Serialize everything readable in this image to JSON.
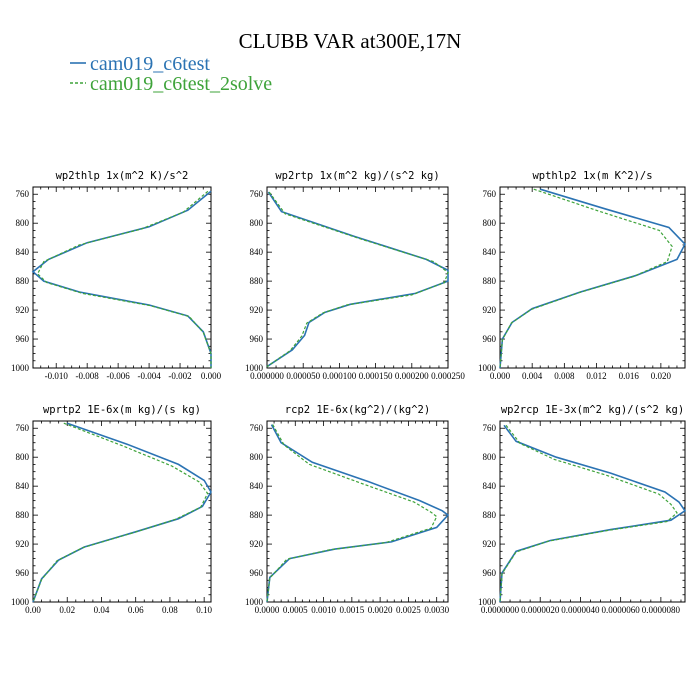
{
  "colors": {
    "series_a": "#2b73b3",
    "series_b": "#3ea33a",
    "axis": "#000000",
    "background": "#ffffff"
  },
  "chart_data": {
    "title": "CLUBB VAR at300E,17N",
    "legend": [
      {
        "name": "cam019_c6test",
        "color": "#2b73b3",
        "style": "solid"
      },
      {
        "name": "cam019_c6test_2solve",
        "color": "#3ea33a",
        "style": "dashed"
      }
    ],
    "legend_placement": "top-left",
    "grid": false,
    "y_axis": {
      "range": [
        1000,
        750
      ],
      "inverted": true,
      "ticks": [
        "760",
        "800",
        "840",
        "880",
        "920",
        "960",
        "1000"
      ],
      "tick_values": [
        760,
        800,
        840,
        880,
        920,
        960,
        1000
      ]
    },
    "panels": [
      {
        "type": "line",
        "title": "wp2thlp  1x(m^2 K)/s^2",
        "xlim": [
          -0.0115,
          0.0
        ],
        "xticks": [
          "-0.010",
          "-0.008",
          "-0.006",
          "-0.004",
          "-0.002",
          "0.000"
        ],
        "xtick_values": [
          -0.01,
          -0.008,
          -0.006,
          -0.004,
          -0.002,
          0.0
        ],
        "series": [
          {
            "x": [
              0.0,
              -0.0015,
              -0.004,
              -0.008,
              -0.0105,
              -0.0115,
              -0.0108,
              -0.0085,
              -0.004,
              -0.0015,
              -0.0005,
              0.0,
              0.0
            ],
            "y": [
              756,
              782,
              805,
              827,
              850,
              867,
              880,
              895,
              913,
              928,
              950,
              980,
              1000
            ]
          },
          {
            "x": [
              -0.0002,
              -0.0018,
              -0.0045,
              -0.0085,
              -0.0108,
              -0.0112,
              -0.0106,
              -0.0083,
              -0.0039,
              -0.0014,
              -0.0005,
              0.0,
              0.0
            ],
            "y": [
              756,
              785,
              808,
              830,
              853,
              870,
              882,
              897,
              914,
              929,
              951,
              980,
              1000
            ]
          }
        ]
      },
      {
        "type": "line",
        "title": "wp2rtp  1x(m^2 kg)/(s^2 kg)",
        "xlim": [
          0.0,
          0.00025
        ],
        "xticks": [
          "0.000000",
          "0.000050",
          "0.000100",
          "0.000150",
          "0.000200",
          "0.000250"
        ],
        "xtick_values": [
          0.0,
          5e-05,
          0.0001,
          0.00015,
          0.0002,
          0.00025
        ],
        "series": [
          {
            "x": [
              2e-06,
              2e-05,
              0.00012,
              0.00022,
              0.00025,
              0.00025,
              0.000205,
              0.000115,
              8e-05,
              5.8e-05,
              5.2e-05,
              3.5e-05,
              0.0
            ],
            "y": [
              757,
              784,
              818,
              850,
              865,
              880,
              897,
              912,
              923,
              937,
              955,
              975,
              998
            ]
          },
          {
            "x": [
              3e-06,
              2.5e-05,
              0.00013,
              0.00023,
              0.00025,
              0.000245,
              0.0002,
              0.00011,
              7.7e-05,
              5.5e-05,
              4.8e-05,
              3.2e-05,
              0.0
            ],
            "y": [
              757,
              787,
              822,
              853,
              868,
              882,
              899,
              913,
              924,
              938,
              956,
              976,
              998
            ]
          }
        ]
      },
      {
        "type": "line",
        "title": "wpthlp2  1x(m K^2)/s",
        "xlim": [
          0.0,
          0.023
        ],
        "xticks": [
          "0.000",
          "0.004",
          "0.008",
          "0.012",
          "0.016",
          "0.020"
        ],
        "xtick_values": [
          0.0,
          0.004,
          0.008,
          0.012,
          0.016,
          0.02
        ],
        "series": [
          {
            "x": [
              0.005,
              0.013,
              0.021,
              0.023,
              0.022,
              0.017,
              0.01,
              0.004,
              0.0015,
              0.0003,
              0.0
            ],
            "y": [
              753,
              780,
              806,
              829,
              850,
              872,
              895,
              918,
              937,
              960,
              1000
            ]
          },
          {
            "x": [
              0.0042,
              0.0122,
              0.0198,
              0.0214,
              0.0208,
              0.0165,
              0.0098,
              0.0039,
              0.0014,
              0.0003,
              0.0
            ],
            "y": [
              753,
              783,
              810,
              832,
              853,
              874,
              896,
              919,
              938,
              961,
              1000
            ]
          }
        ]
      },
      {
        "type": "line",
        "title": "wprtp2  1E-6x(m kg)/(s kg)",
        "xlim": [
          0.0,
          0.104
        ],
        "xticks": [
          "0.00",
          "0.02",
          "0.04",
          "0.06",
          "0.08",
          "0.10"
        ],
        "xtick_values": [
          0.0,
          0.02,
          0.04,
          0.06,
          0.08,
          0.1
        ],
        "series": [
          {
            "x": [
              0.02,
              0.055,
              0.085,
              0.1,
              0.104,
              0.099,
              0.085,
              0.06,
              0.03,
              0.015,
              0.005,
              0.0
            ],
            "y": [
              753,
              782,
              810,
              832,
              848,
              868,
              885,
              903,
              924,
              942,
              968,
              1000
            ]
          },
          {
            "x": [
              0.018,
              0.052,
              0.081,
              0.097,
              0.102,
              0.098,
              0.083,
              0.059,
              0.029,
              0.014,
              0.005,
              0.0
            ],
            "y": [
              753,
              784,
              812,
              834,
              850,
              869,
              886,
              904,
              925,
              943,
              969,
              1000
            ]
          }
        ]
      },
      {
        "type": "line",
        "title": "rcp2  1E-6x(kg^2)/(kg^2)",
        "xlim": [
          0.0,
          0.0032
        ],
        "xticks": [
          "0.0000",
          "0.0005",
          "0.0010",
          "0.0015",
          "0.0020",
          "0.0025",
          "0.0030"
        ],
        "xtick_values": [
          0.0,
          0.0005,
          0.001,
          0.0015,
          0.002,
          0.0025,
          0.003
        ],
        "series": [
          {
            "x": [
              8e-05,
              0.00025,
              0.0008,
              0.0018,
              0.0027,
              0.0031,
              0.0032,
              0.003,
              0.0022,
              0.0012,
              0.0004,
              5e-05,
              0.0
            ],
            "y": [
              755,
              780,
              807,
              834,
              860,
              874,
              880,
              897,
              917,
              927,
              940,
              966,
              1000
            ]
          },
          {
            "x": [
              0.0001,
              0.0003,
              0.00075,
              0.0017,
              0.0026,
              0.0029,
              0.003,
              0.0029,
              0.0021,
              0.0011,
              0.00035,
              5e-05,
              0.0
            ],
            "y": [
              755,
              783,
              810,
              837,
              862,
              876,
              882,
              898,
              918,
              928,
              941,
              967,
              1000
            ]
          }
        ]
      },
      {
        "type": "line",
        "title": "wp2rcp  1E-3x(m^2 kg)/(s^2 kg)",
        "xlim": [
          0.0,
          9.2e-06
        ],
        "xticks": [
          "0.0000000",
          "0.0000020",
          "0.0000040",
          "0.0000060",
          "0.0000080"
        ],
        "xtick_values": [
          0.0,
          2e-06,
          4e-06,
          6e-06,
          8e-06
        ],
        "series": [
          {
            "x": [
              2e-07,
              8e-07,
              2.8e-06,
              5.5e-06,
              8.2e-06,
              8.9e-06,
              9.2e-06,
              8.5e-06,
              5.5e-06,
              2.5e-06,
              8e-07,
              1e-07,
              0.0
            ],
            "y": [
              756,
              778,
              800,
              822,
              848,
              862,
              874,
              887,
              900,
              915,
              930,
              960,
              1000
            ]
          },
          {
            "x": [
              3e-07,
              1e-06,
              2.7e-06,
              5.3e-06,
              7.9e-06,
              8.5e-06,
              8.8e-06,
              8.3e-06,
              5.4e-06,
              2.4e-06,
              8e-07,
              1e-07,
              0.0
            ],
            "y": [
              756,
              781,
              803,
              825,
              851,
              865,
              877,
              889,
              901,
              916,
              931,
              961,
              1000
            ]
          }
        ]
      }
    ]
  }
}
